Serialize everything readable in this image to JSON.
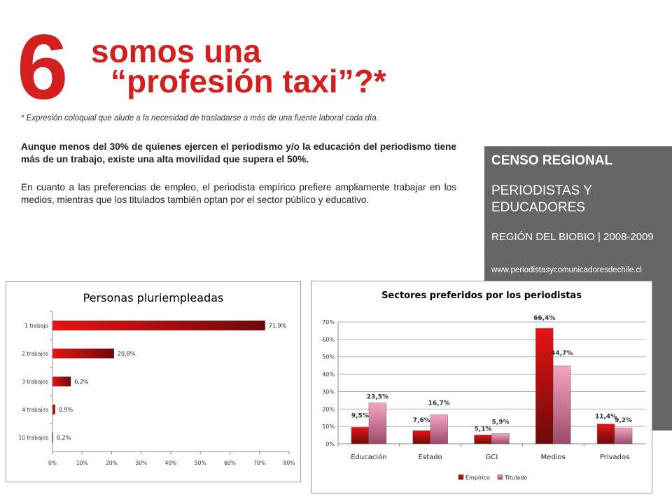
{
  "header": {
    "number": "6",
    "title_line1": "somos una",
    "title_line2": "“profesión taxi”?*"
  },
  "footnote": "* Expresión coloquial que alude a la necesidad de trasladarse a más de una fuente laboral cada día.",
  "paragraph_bold": "Aunque menos del 30% de quienes ejercen el periodismo y/o la educación del periodismo tiene más de un trabajo, existe una alta movilidad que supera el 50%.",
  "paragraph_normal": "En cuanto a las preferencias de empleo, el periodista empírico prefiere ampliamente trabajar en los medios, mientras que los titulados también optan por el sector público y educativo.",
  "side_panel": {
    "heading": "CENSO REGIONAL",
    "subtitle": "PERIODISTAS Y EDUCADORES",
    "region": "REGIÓN DEL BIOBIO | 2008-2009",
    "url": "www.periodistasycomunicadoresdechile.cl"
  },
  "colors": {
    "accent": "#d41f1f",
    "panel": "#666666",
    "bar_red": "#e41414",
    "bar_dark": "#6e0a0a",
    "bar_pink": "#f4a4c0",
    "bar_mauve": "#9c4a6c"
  },
  "chart_data": [
    {
      "type": "bar",
      "orientation": "horizontal",
      "title": "Personas pluriempleadas",
      "categories": [
        "1 trabajo",
        "2 trabajos",
        "3 trabajos",
        "4 trabajos",
        "10 trabajos"
      ],
      "values": [
        71.9,
        20.8,
        6.2,
        0.9,
        0.2
      ],
      "value_labels": [
        "71,9%",
        "20,8%",
        "6,2%",
        "0,9%",
        "0,2%"
      ],
      "xlim": [
        0,
        80
      ],
      "x_ticks": [
        "0%",
        "10%",
        "20%",
        "30%",
        "40%",
        "50%",
        "60%",
        "70%",
        "80%"
      ],
      "grid": false
    },
    {
      "type": "bar",
      "title": "Sectores preferidos por los periodistas",
      "categories": [
        "Educación",
        "Estado",
        "GCI",
        "Medios",
        "Privados"
      ],
      "series": [
        {
          "name": "Empírico",
          "values": [
            9.5,
            7.6,
            5.1,
            66.4,
            11.4
          ],
          "labels": [
            "9,5%",
            "7,6%",
            "5,1%",
            "66,4%",
            "11,4%"
          ]
        },
        {
          "name": "Titulado",
          "values": [
            23.5,
            16.7,
            5.9,
            44.7,
            9.2
          ],
          "labels": [
            "23,5%",
            "16,7%",
            "5,9%",
            "44,7%",
            "9,2%"
          ]
        }
      ],
      "ylim": [
        0,
        70
      ],
      "y_ticks": [
        "0%",
        "10%",
        "20%",
        "30%",
        "40%",
        "50%",
        "60%",
        "70%"
      ],
      "grid": true,
      "legend": "bottom"
    }
  ]
}
